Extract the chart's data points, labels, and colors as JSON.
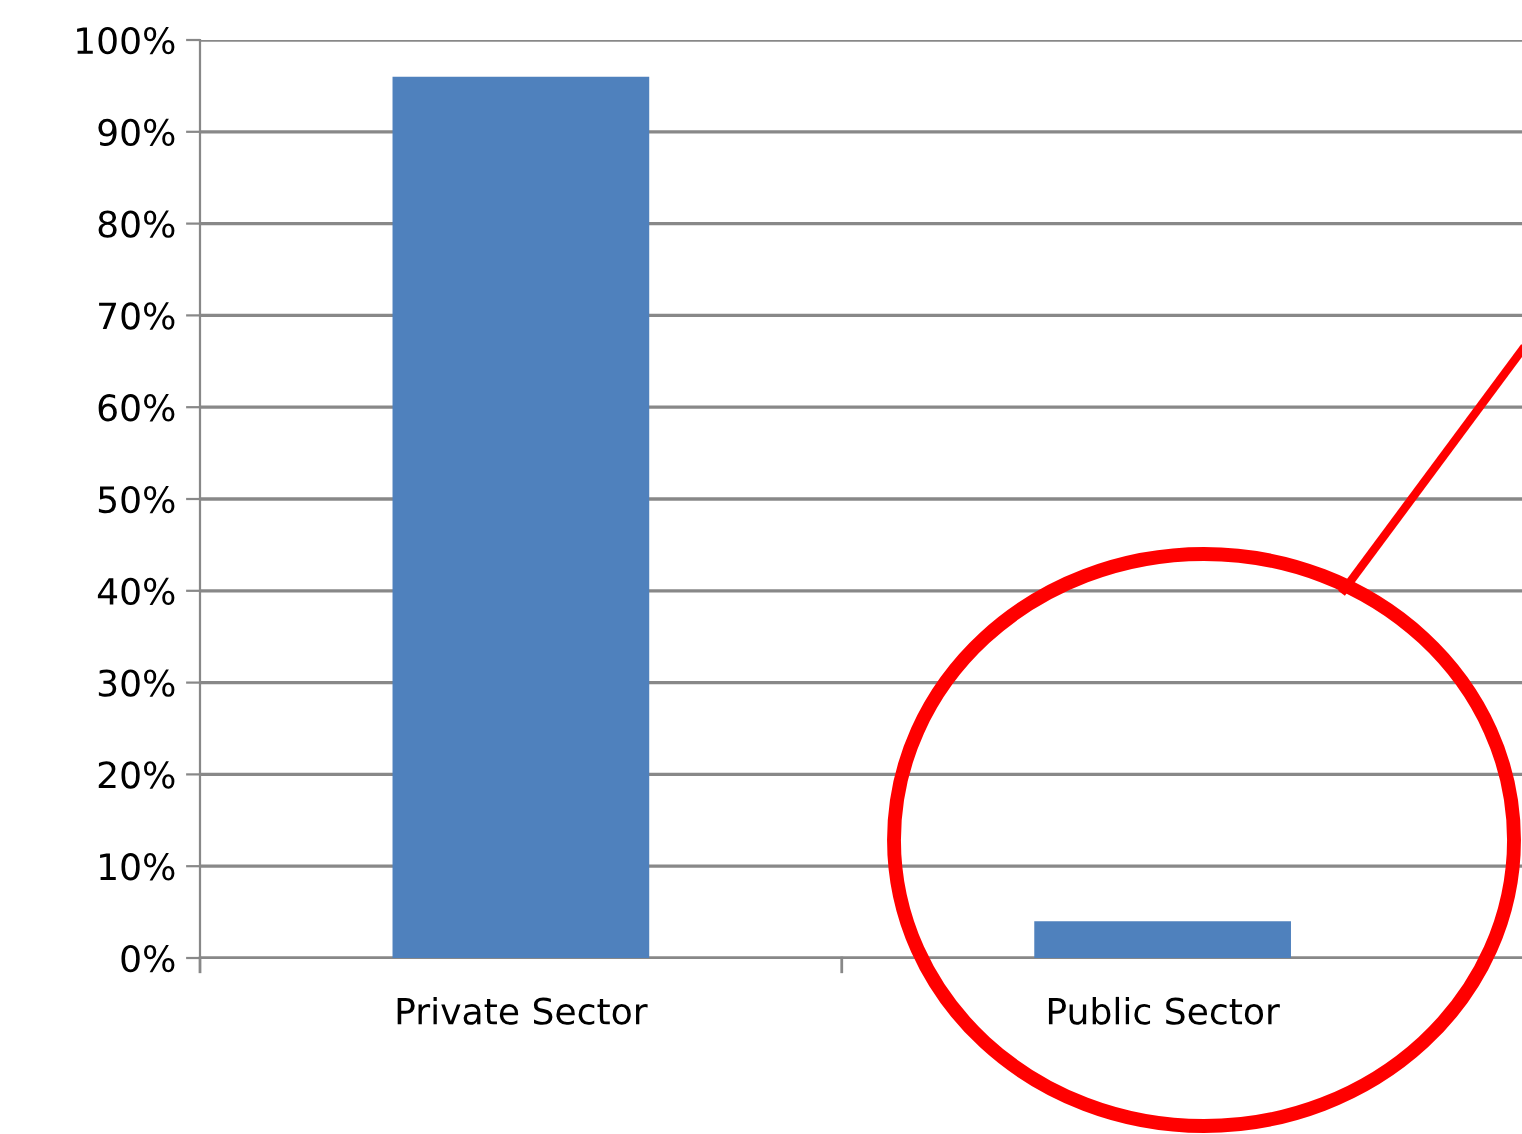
{
  "chart_data": {
    "type": "bar",
    "categories": [
      "Private Sector",
      "Public Sector"
    ],
    "values": [
      96,
      4
    ],
    "color": "#4f81bd",
    "ylim": [
      0,
      100
    ],
    "yticks": [
      {
        "value": 0,
        "label": "0%"
      },
      {
        "value": 10,
        "label": "10%"
      },
      {
        "value": 20,
        "label": "20%"
      },
      {
        "value": 30,
        "label": "30%"
      },
      {
        "value": 40,
        "label": "40%"
      },
      {
        "value": 50,
        "label": "50%"
      },
      {
        "value": 60,
        "label": "60%"
      },
      {
        "value": 70,
        "label": "70%"
      },
      {
        "value": 80,
        "label": "80%"
      },
      {
        "value": 90,
        "label": "90%"
      },
      {
        "value": 100,
        "label": "100%"
      }
    ],
    "grid": "y"
  }
}
